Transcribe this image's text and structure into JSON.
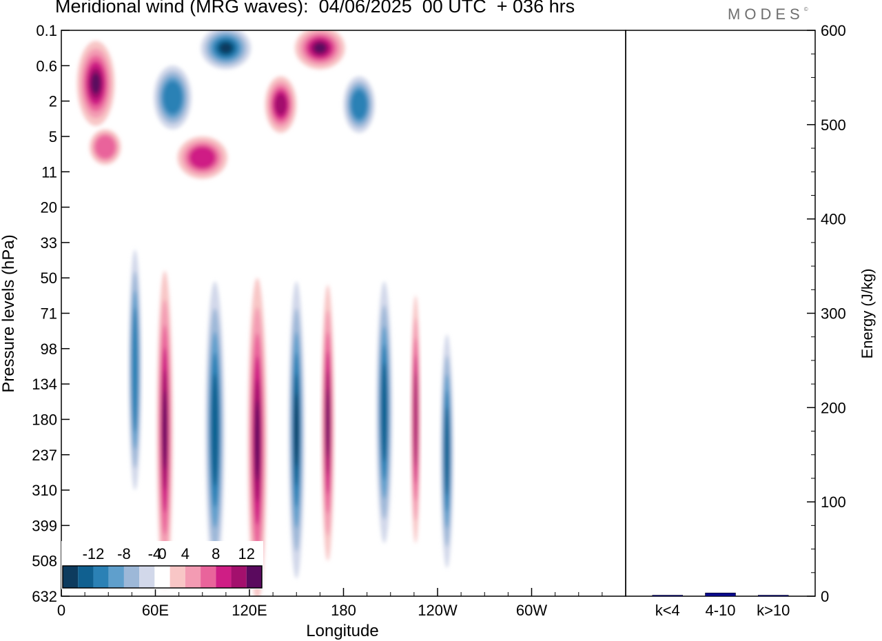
{
  "header": {
    "title": "Meridional wind (MRG waves):  04/06/2025  00 UTC  + 036 hrs",
    "brand": "MODES",
    "brand_mark": "©"
  },
  "colors": {
    "neg": [
      "#0d3b5e",
      "#106090",
      "#2b81b5",
      "#5f9fcc",
      "#9db8d8",
      "#d2d8ea"
    ],
    "pos": [
      "#f8c6c6",
      "#f39bb3",
      "#e9649b",
      "#cf1e85",
      "#a3106d",
      "#5a0a5e"
    ],
    "bar": "#0a0a8c"
  },
  "chart_data": [
    {
      "type": "heatmap",
      "title": "Meridional wind (MRG waves):  04/06/2025  00 UTC  + 036 hrs",
      "xlabel": "Longitude",
      "ylabel": "Pressure levels (hPa)",
      "x_ticks": [
        "0",
        "60E",
        "120E",
        "180",
        "120W",
        "60W"
      ],
      "x_tick_degrees": [
        0,
        60,
        120,
        180,
        240,
        300
      ],
      "xlim": [
        0,
        360
      ],
      "y_ticks": [
        "0.1",
        "0.6",
        "2",
        "5",
        "11",
        "20",
        "33",
        "50",
        "71",
        "98",
        "134",
        "180",
        "237",
        "310",
        "399",
        "508",
        "632"
      ],
      "colorbar": {
        "labels": [
          "-12",
          "-8",
          "-4",
          "0",
          "4",
          "8",
          "12"
        ],
        "levels": [
          -14,
          -12,
          -10,
          -8,
          -6,
          -4,
          -2,
          2,
          4,
          6,
          8,
          10,
          12,
          14
        ]
      },
      "features": [
        {
          "lon": 47,
          "level": 9.6,
          "sign": -1,
          "amp": 8,
          "lon_w": 4,
          "lev_w": 3.4
        },
        {
          "lon": 66,
          "level": 11.3,
          "sign": 1,
          "amp": 11,
          "lon_w": 5,
          "lev_w": 4.5
        },
        {
          "lon": 98,
          "level": 11.3,
          "sign": -1,
          "amp": 10,
          "lon_w": 6,
          "lev_w": 4.2
        },
        {
          "lon": 125,
          "level": 11.6,
          "sign": 1,
          "amp": 14,
          "lon_w": 6,
          "lev_w": 4.6
        },
        {
          "lon": 150,
          "level": 11.3,
          "sign": -1,
          "amp": 14,
          "lon_w": 5,
          "lev_w": 4.2
        },
        {
          "lon": 170,
          "level": 11.1,
          "sign": 1,
          "amp": 11,
          "lon_w": 4,
          "lev_w": 3.9
        },
        {
          "lon": 206,
          "level": 10.8,
          "sign": -1,
          "amp": 10,
          "lon_w": 5,
          "lev_w": 3.7
        },
        {
          "lon": 226,
          "level": 11.0,
          "sign": 1,
          "amp": 10,
          "lon_w": 3,
          "lev_w": 3.5
        },
        {
          "lon": 246,
          "level": 11.9,
          "sign": -1,
          "amp": 9,
          "lon_w": 4,
          "lev_w": 3.3
        },
        {
          "lon": 22,
          "level": 1.5,
          "sign": 1,
          "amp": 12,
          "lon_w": 12,
          "lev_w": 1.2
        },
        {
          "lon": 71,
          "level": 1.9,
          "sign": -1,
          "amp": 8,
          "lon_w": 12,
          "lev_w": 0.9
        },
        {
          "lon": 105,
          "level": 0.5,
          "sign": -1,
          "amp": 14,
          "lon_w": 16,
          "lev_w": 0.6
        },
        {
          "lon": 165,
          "level": 0.5,
          "sign": 1,
          "amp": 14,
          "lon_w": 16,
          "lev_w": 0.6
        },
        {
          "lon": 140,
          "level": 2.1,
          "sign": 1,
          "amp": 10,
          "lon_w": 10,
          "lev_w": 0.8
        },
        {
          "lon": 190,
          "level": 2.1,
          "sign": -1,
          "amp": 8,
          "lon_w": 10,
          "lev_w": 0.8
        },
        {
          "lon": 90,
          "level": 3.6,
          "sign": 1,
          "amp": 8,
          "lon_w": 16,
          "lev_w": 0.6
        },
        {
          "lon": 28,
          "level": 3.3,
          "sign": 1,
          "amp": 6,
          "lon_w": 10,
          "lev_w": 0.5
        }
      ]
    },
    {
      "type": "bar",
      "categories": [
        "k<4",
        "4-10",
        "k>10"
      ],
      "values": [
        0.4,
        3.5,
        0.2
      ],
      "ylabel": "Energy (J/kg)",
      "ylim": [
        0,
        600
      ],
      "y_ticks": [
        0,
        100,
        200,
        300,
        400,
        500,
        600
      ]
    }
  ]
}
